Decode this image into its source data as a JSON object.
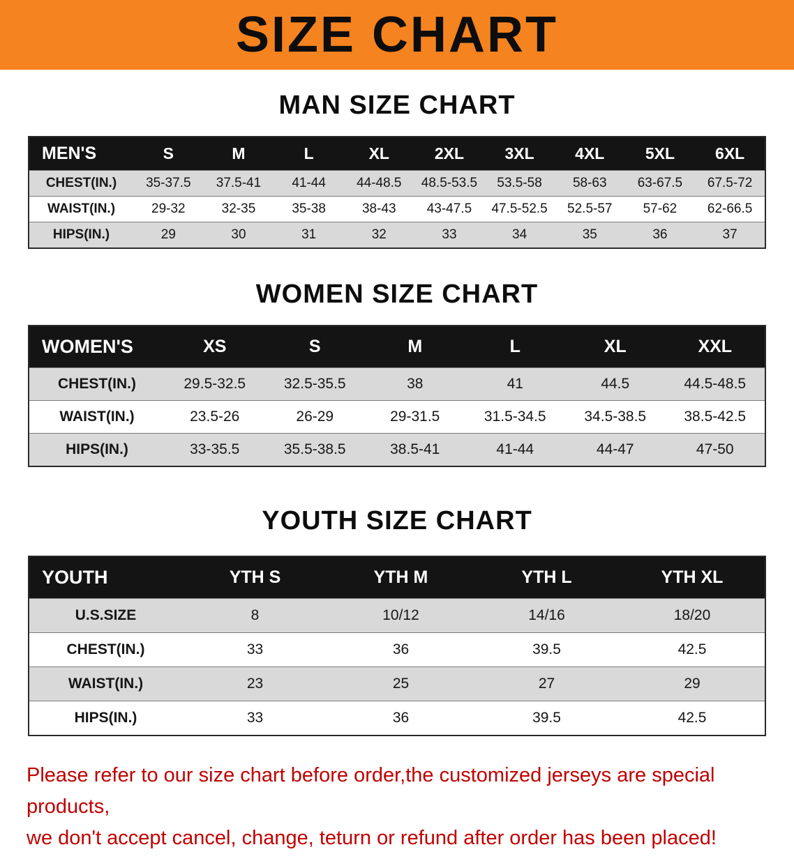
{
  "banner": {
    "title": "SIZE CHART"
  },
  "colors": {
    "banner-bg": "#f5831f",
    "header-bg": "#141414",
    "stripe-gray": "#d9d9d9",
    "disclaimer-red": "#c00000"
  },
  "sections": [
    {
      "id": "men",
      "heading": "MAN SIZE CHART",
      "table": {
        "header": [
          "MEN'S",
          "S",
          "M",
          "L",
          "XL",
          "2XL",
          "3XL",
          "4XL",
          "5XL",
          "6XL"
        ],
        "rows": [
          [
            "CHEST(IN.)",
            "35-37.5",
            "37.5-41",
            "41-44",
            "44-48.5",
            "48.5-53.5",
            "53.5-58",
            "58-63",
            "63-67.5",
            "67.5-72"
          ],
          [
            "WAIST(IN.)",
            "29-32",
            "32-35",
            "35-38",
            "38-43",
            "43-47.5",
            "47.5-52.5",
            "52.5-57",
            "57-62",
            "62-66.5"
          ],
          [
            "HIPS(IN.)",
            "29",
            "30",
            "31",
            "32",
            "33",
            "34",
            "35",
            "36",
            "37"
          ]
        ]
      }
    },
    {
      "id": "women",
      "heading": "WOMEN SIZE CHART",
      "table": {
        "header": [
          "WOMEN'S",
          "XS",
          "S",
          "M",
          "L",
          "XL",
          "XXL"
        ],
        "rows": [
          [
            "CHEST(IN.)",
            "29.5-32.5",
            "32.5-35.5",
            "38",
            "41",
            "44.5",
            "44.5-48.5"
          ],
          [
            "WAIST(IN.)",
            "23.5-26",
            "26-29",
            "29-31.5",
            "31.5-34.5",
            "34.5-38.5",
            "38.5-42.5"
          ],
          [
            "HIPS(IN.)",
            "33-35.5",
            "35.5-38.5",
            "38.5-41",
            "41-44",
            "44-47",
            "47-50"
          ]
        ]
      }
    },
    {
      "id": "youth",
      "heading": "YOUTH SIZE CHART",
      "table": {
        "header": [
          "YOUTH",
          "YTH S",
          "YTH M",
          "YTH L",
          "YTH XL"
        ],
        "rows": [
          [
            "U.S.SIZE",
            "8",
            "10/12",
            "14/16",
            "18/20"
          ],
          [
            "CHEST(IN.)",
            "33",
            "36",
            "39.5",
            "42.5"
          ],
          [
            "WAIST(IN.)",
            "23",
            "25",
            "27",
            "29"
          ],
          [
            "HIPS(IN.)",
            "33",
            "36",
            "39.5",
            "42.5"
          ]
        ]
      }
    }
  ],
  "disclaimer": {
    "lines": [
      "Please refer to our size chart before order,the customized jerseys are special products,",
      "we don't accept cancel, change, teturn or refund after order has been placed!"
    ]
  }
}
